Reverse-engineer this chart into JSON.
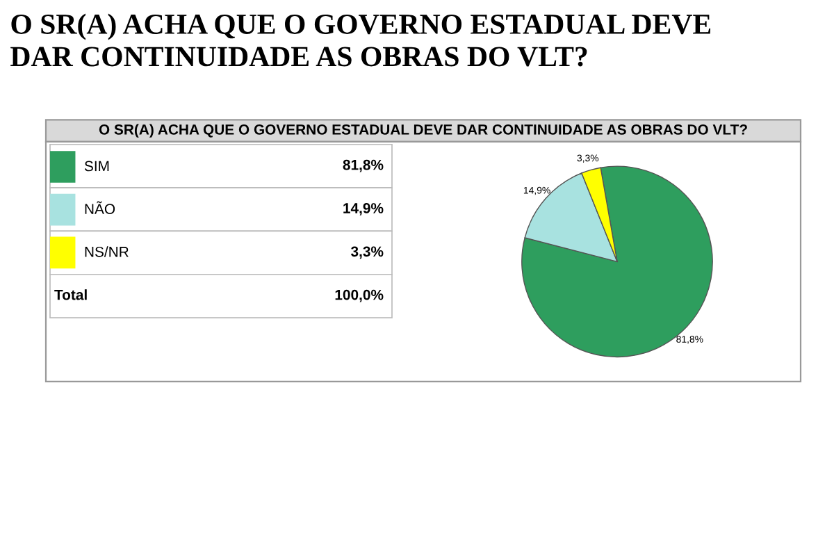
{
  "chart_data": {
    "type": "pie",
    "title": "O SR(A) ACHA QUE O GOVERNO ESTADUAL DEVE\nDAR CONTINUIDADE AS OBRAS DO VLT?",
    "subtitle": "O SR(A) ACHA QUE O GOVERNO ESTADUAL DEVE DAR CONTINUIDADE AS OBRAS DO VLT?",
    "categories": [
      "SIM",
      "NÃO",
      "NS/NR"
    ],
    "values": [
      81.8,
      14.9,
      3.3
    ],
    "value_labels": [
      "81,8%",
      "14,9%",
      "3,3%"
    ],
    "colors": [
      "#2e9e5e",
      "#a8e2e0",
      "#ffff00"
    ],
    "totals": [
      "100,0%"
    ],
    "annotations": [
      "Total"
    ],
    "legend": "left"
  }
}
